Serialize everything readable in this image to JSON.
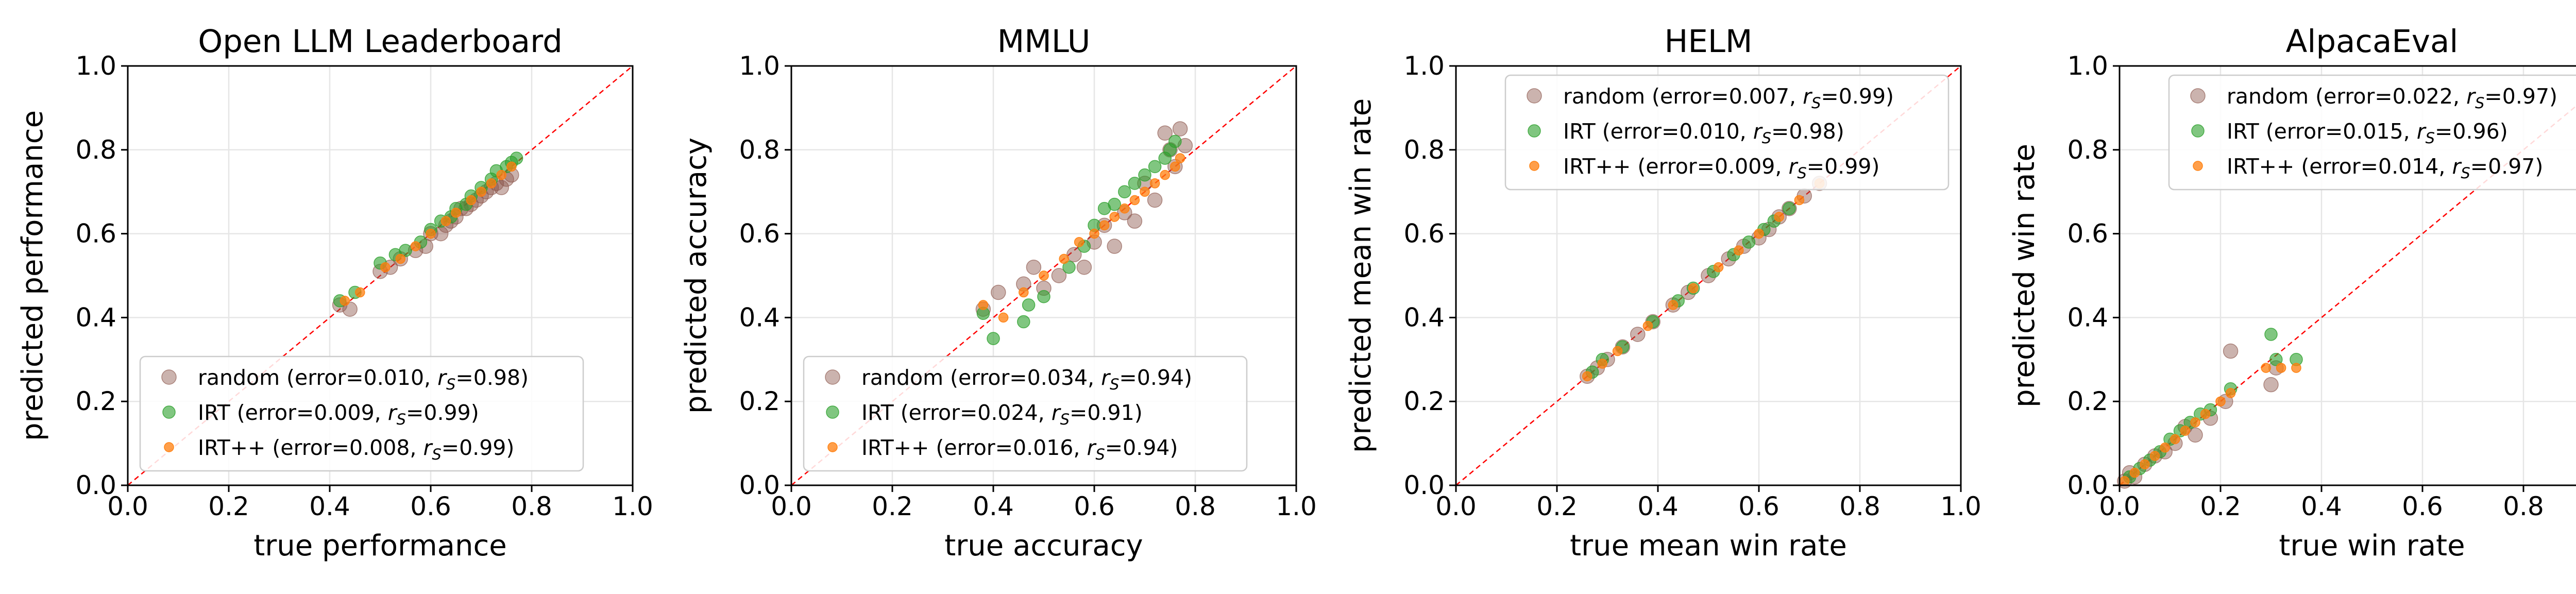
{
  "chart_data": [
    {
      "type": "scatter",
      "title": "Open LLM Leaderboard",
      "xlabel": "true performance",
      "ylabel": "predicted performance",
      "xlim": [
        0,
        1
      ],
      "ylim": [
        0,
        1
      ],
      "ticks": [
        "0.0",
        "0.2",
        "0.4",
        "0.6",
        "0.8",
        "1.0"
      ],
      "grid": true,
      "diagonal": true,
      "legend_position": "lower-left",
      "series": [
        {
          "name": "random",
          "error": "0.010",
          "rs": "0.98",
          "x": [
            0.42,
            0.44,
            0.5,
            0.52,
            0.54,
            0.57,
            0.59,
            0.6,
            0.62,
            0.63,
            0.64,
            0.65,
            0.66,
            0.67,
            0.68,
            0.69,
            0.7,
            0.71,
            0.72,
            0.73,
            0.74,
            0.75,
            0.76
          ],
          "y": [
            0.43,
            0.42,
            0.51,
            0.52,
            0.54,
            0.56,
            0.57,
            0.6,
            0.6,
            0.62,
            0.63,
            0.64,
            0.66,
            0.66,
            0.67,
            0.68,
            0.69,
            0.7,
            0.71,
            0.72,
            0.71,
            0.73,
            0.74
          ]
        },
        {
          "name": "IRT",
          "error": "0.009",
          "rs": "0.99",
          "x": [
            0.42,
            0.45,
            0.5,
            0.53,
            0.55,
            0.58,
            0.6,
            0.62,
            0.64,
            0.65,
            0.67,
            0.68,
            0.7,
            0.72,
            0.73,
            0.75,
            0.76,
            0.77
          ],
          "y": [
            0.44,
            0.46,
            0.53,
            0.55,
            0.56,
            0.58,
            0.61,
            0.63,
            0.64,
            0.66,
            0.67,
            0.69,
            0.71,
            0.73,
            0.75,
            0.76,
            0.77,
            0.78
          ]
        },
        {
          "name": "IRT++",
          "error": "0.008",
          "rs": "0.99",
          "x": [
            0.43,
            0.46,
            0.51,
            0.54,
            0.57,
            0.6,
            0.63,
            0.65,
            0.68,
            0.7,
            0.72,
            0.74,
            0.76
          ],
          "y": [
            0.44,
            0.46,
            0.52,
            0.54,
            0.57,
            0.6,
            0.63,
            0.65,
            0.68,
            0.7,
            0.72,
            0.74,
            0.76
          ]
        }
      ]
    },
    {
      "type": "scatter",
      "title": "MMLU",
      "xlabel": "true accuracy",
      "ylabel": "predicted accuracy",
      "xlim": [
        0,
        1
      ],
      "ylim": [
        0,
        1
      ],
      "ticks": [
        "0.0",
        "0.2",
        "0.4",
        "0.6",
        "0.8",
        "1.0"
      ],
      "grid": true,
      "diagonal": true,
      "legend_position": "lower-left",
      "series": [
        {
          "name": "random",
          "error": "0.034",
          "rs": "0.94",
          "x": [
            0.38,
            0.41,
            0.46,
            0.48,
            0.5,
            0.53,
            0.56,
            0.58,
            0.6,
            0.62,
            0.64,
            0.66,
            0.68,
            0.7,
            0.72,
            0.74,
            0.75,
            0.76,
            0.77,
            0.78
          ],
          "y": [
            0.42,
            0.46,
            0.48,
            0.52,
            0.47,
            0.5,
            0.55,
            0.52,
            0.58,
            0.62,
            0.57,
            0.65,
            0.63,
            0.72,
            0.68,
            0.84,
            0.8,
            0.76,
            0.85,
            0.81
          ]
        },
        {
          "name": "IRT",
          "error": "0.024",
          "rs": "0.91",
          "x": [
            0.38,
            0.4,
            0.46,
            0.47,
            0.5,
            0.55,
            0.58,
            0.6,
            0.62,
            0.64,
            0.66,
            0.68,
            0.7,
            0.72,
            0.74,
            0.75,
            0.76
          ],
          "y": [
            0.41,
            0.35,
            0.39,
            0.43,
            0.45,
            0.52,
            0.57,
            0.62,
            0.66,
            0.67,
            0.7,
            0.72,
            0.74,
            0.76,
            0.78,
            0.8,
            0.82
          ]
        },
        {
          "name": "IRT++",
          "error": "0.016",
          "rs": "0.94",
          "x": [
            0.38,
            0.42,
            0.46,
            0.5,
            0.54,
            0.57,
            0.6,
            0.62,
            0.64,
            0.66,
            0.68,
            0.7,
            0.72,
            0.74,
            0.76,
            0.77
          ],
          "y": [
            0.43,
            0.4,
            0.46,
            0.5,
            0.54,
            0.58,
            0.6,
            0.62,
            0.64,
            0.66,
            0.68,
            0.7,
            0.72,
            0.74,
            0.76,
            0.78
          ]
        }
      ]
    },
    {
      "type": "scatter",
      "title": "HELM",
      "xlabel": "true mean win rate",
      "ylabel": "predicted mean win rate",
      "xlim": [
        0,
        1
      ],
      "ylim": [
        0,
        1
      ],
      "ticks": [
        "0.0",
        "0.2",
        "0.4",
        "0.6",
        "0.8",
        "1.0"
      ],
      "grid": true,
      "diagonal": true,
      "legend_position": "top-right",
      "series": [
        {
          "name": "random",
          "error": "0.007",
          "rs": "0.99",
          "x": [
            0.26,
            0.28,
            0.3,
            0.33,
            0.36,
            0.39,
            0.43,
            0.46,
            0.5,
            0.54,
            0.57,
            0.6,
            0.62,
            0.64,
            0.66,
            0.69,
            0.72
          ],
          "y": [
            0.26,
            0.28,
            0.3,
            0.33,
            0.36,
            0.39,
            0.43,
            0.46,
            0.5,
            0.54,
            0.57,
            0.59,
            0.61,
            0.64,
            0.66,
            0.69,
            0.72
          ]
        },
        {
          "name": "IRT",
          "error": "0.010",
          "rs": "0.98",
          "x": [
            0.27,
            0.29,
            0.33,
            0.39,
            0.44,
            0.47,
            0.51,
            0.55,
            0.58,
            0.61,
            0.63,
            0.66
          ],
          "y": [
            0.27,
            0.3,
            0.33,
            0.39,
            0.44,
            0.47,
            0.51,
            0.55,
            0.58,
            0.61,
            0.63,
            0.66
          ]
        },
        {
          "name": "IRT++",
          "error": "0.009",
          "rs": "0.99",
          "x": [
            0.26,
            0.29,
            0.32,
            0.38,
            0.43,
            0.47,
            0.52,
            0.56,
            0.6,
            0.64,
            0.68,
            0.72
          ],
          "y": [
            0.26,
            0.29,
            0.32,
            0.38,
            0.43,
            0.47,
            0.52,
            0.56,
            0.6,
            0.64,
            0.68,
            0.72
          ]
        }
      ]
    },
    {
      "type": "scatter",
      "title": "AlpacaEval",
      "xlabel": "true win rate",
      "ylabel": "predicted win rate",
      "xlim": [
        0,
        1
      ],
      "ylim": [
        0,
        1
      ],
      "ticks": [
        "0.0",
        "0.2",
        "0.4",
        "0.6",
        "0.8",
        "1.0"
      ],
      "grid": true,
      "diagonal": true,
      "legend_position": "top-right",
      "series": [
        {
          "name": "random",
          "error": "0.022",
          "rs": "0.97",
          "x": [
            0.01,
            0.02,
            0.03,
            0.05,
            0.07,
            0.09,
            0.11,
            0.13,
            0.15,
            0.18,
            0.21,
            0.22,
            0.3,
            0.31
          ],
          "y": [
            0.01,
            0.03,
            0.02,
            0.05,
            0.07,
            0.08,
            0.1,
            0.14,
            0.12,
            0.16,
            0.2,
            0.32,
            0.24,
            0.28
          ]
        },
        {
          "name": "IRT",
          "error": "0.015",
          "rs": "0.96",
          "x": [
            0.02,
            0.04,
            0.06,
            0.08,
            0.1,
            0.12,
            0.14,
            0.16,
            0.18,
            0.22,
            0.3,
            0.31,
            0.35
          ],
          "y": [
            0.02,
            0.04,
            0.06,
            0.08,
            0.11,
            0.13,
            0.15,
            0.17,
            0.18,
            0.23,
            0.36,
            0.3,
            0.3
          ]
        },
        {
          "name": "IRT++",
          "error": "0.014",
          "rs": "0.97",
          "x": [
            0.01,
            0.03,
            0.05,
            0.07,
            0.09,
            0.11,
            0.13,
            0.15,
            0.17,
            0.2,
            0.22,
            0.29,
            0.32,
            0.35
          ],
          "y": [
            0.01,
            0.03,
            0.05,
            0.07,
            0.09,
            0.11,
            0.13,
            0.15,
            0.17,
            0.2,
            0.22,
            0.28,
            0.28,
            0.28
          ]
        }
      ]
    }
  ],
  "style": {
    "colors": {
      "random": "#8c564b",
      "IRT": "#2ca02c",
      "IRT++": "#ff7f0e"
    },
    "diagonal_color": "#ff0000",
    "grid_color": "#e6e6e6",
    "legend_symbol": "r",
    "legend_subscript": "S"
  }
}
